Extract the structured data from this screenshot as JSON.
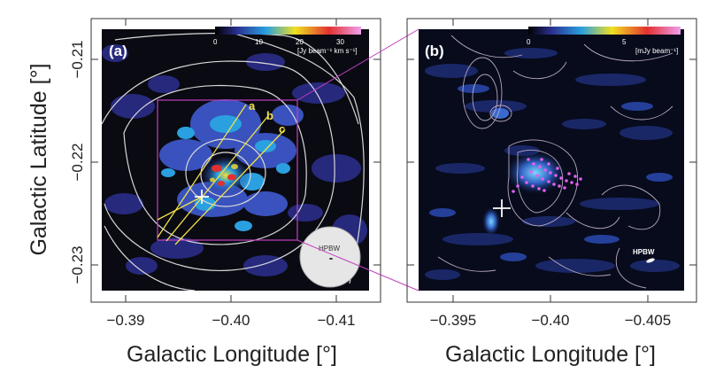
{
  "figure": {
    "panel_a": {
      "label": "(a)",
      "colorbar_ticks": [
        "0",
        "10",
        "20",
        "30"
      ],
      "colorbar_unit": "[Jy beam⁻¹ km s⁻¹]",
      "line_labels": [
        "a",
        "b",
        "c"
      ],
      "beam_label": "HPBW",
      "x_ticks": [
        "−0.39",
        "−0.40",
        "−0.41"
      ],
      "y_ticks": [
        "−0.21",
        "−0.22",
        "−0.23"
      ],
      "xlabel": "Galactic Longitude [°]",
      "ylabel": "Galactic Latitude [°]"
    },
    "panel_b": {
      "label": "(b)",
      "colorbar_ticks": [
        "0",
        "5"
      ],
      "colorbar_unit": "[mJy beam⁻¹]",
      "beam_label": "HPBW",
      "x_ticks": [
        "−0.395",
        "−0.40",
        "−0.405"
      ],
      "xlabel": "Galactic Longitude [°]"
    },
    "colors": {
      "map_background": "#0a0a12",
      "emission_low": "#2b2f8f",
      "emission_mid": "#2aa0e0",
      "emission_high": "#e23030",
      "contour": "#d8d8d8",
      "box": "#c040c0",
      "lines": "#f2e14a",
      "dots": "#e060f0"
    }
  }
}
